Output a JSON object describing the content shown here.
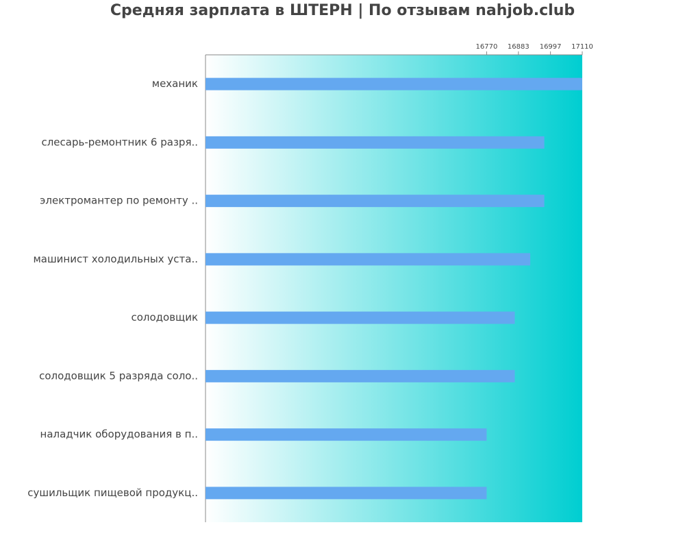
{
  "chart_data": {
    "type": "bar",
    "orientation": "horizontal",
    "title": "Средняя зарплата в ШТЕРН | По отзывам nahjob.club",
    "categories": [
      "механик",
      "слесарь-ремонтник 6 разря..",
      "электромантер по ремонту ..",
      "машинист холодильных уста..",
      "солодовщик",
      "солодовщик 5 разряда соло..",
      "наладчик оборудования в п..",
      "сушильщик пищевой продукц.."
    ],
    "values": [
      17110,
      16975,
      16975,
      16925,
      16870,
      16870,
      16770,
      16770
    ],
    "color": "#64a8f0",
    "background_color": "#00ced1",
    "xlim": [
      15770,
      17110
    ],
    "xticks": [
      16770,
      16883,
      16997,
      17110
    ]
  }
}
